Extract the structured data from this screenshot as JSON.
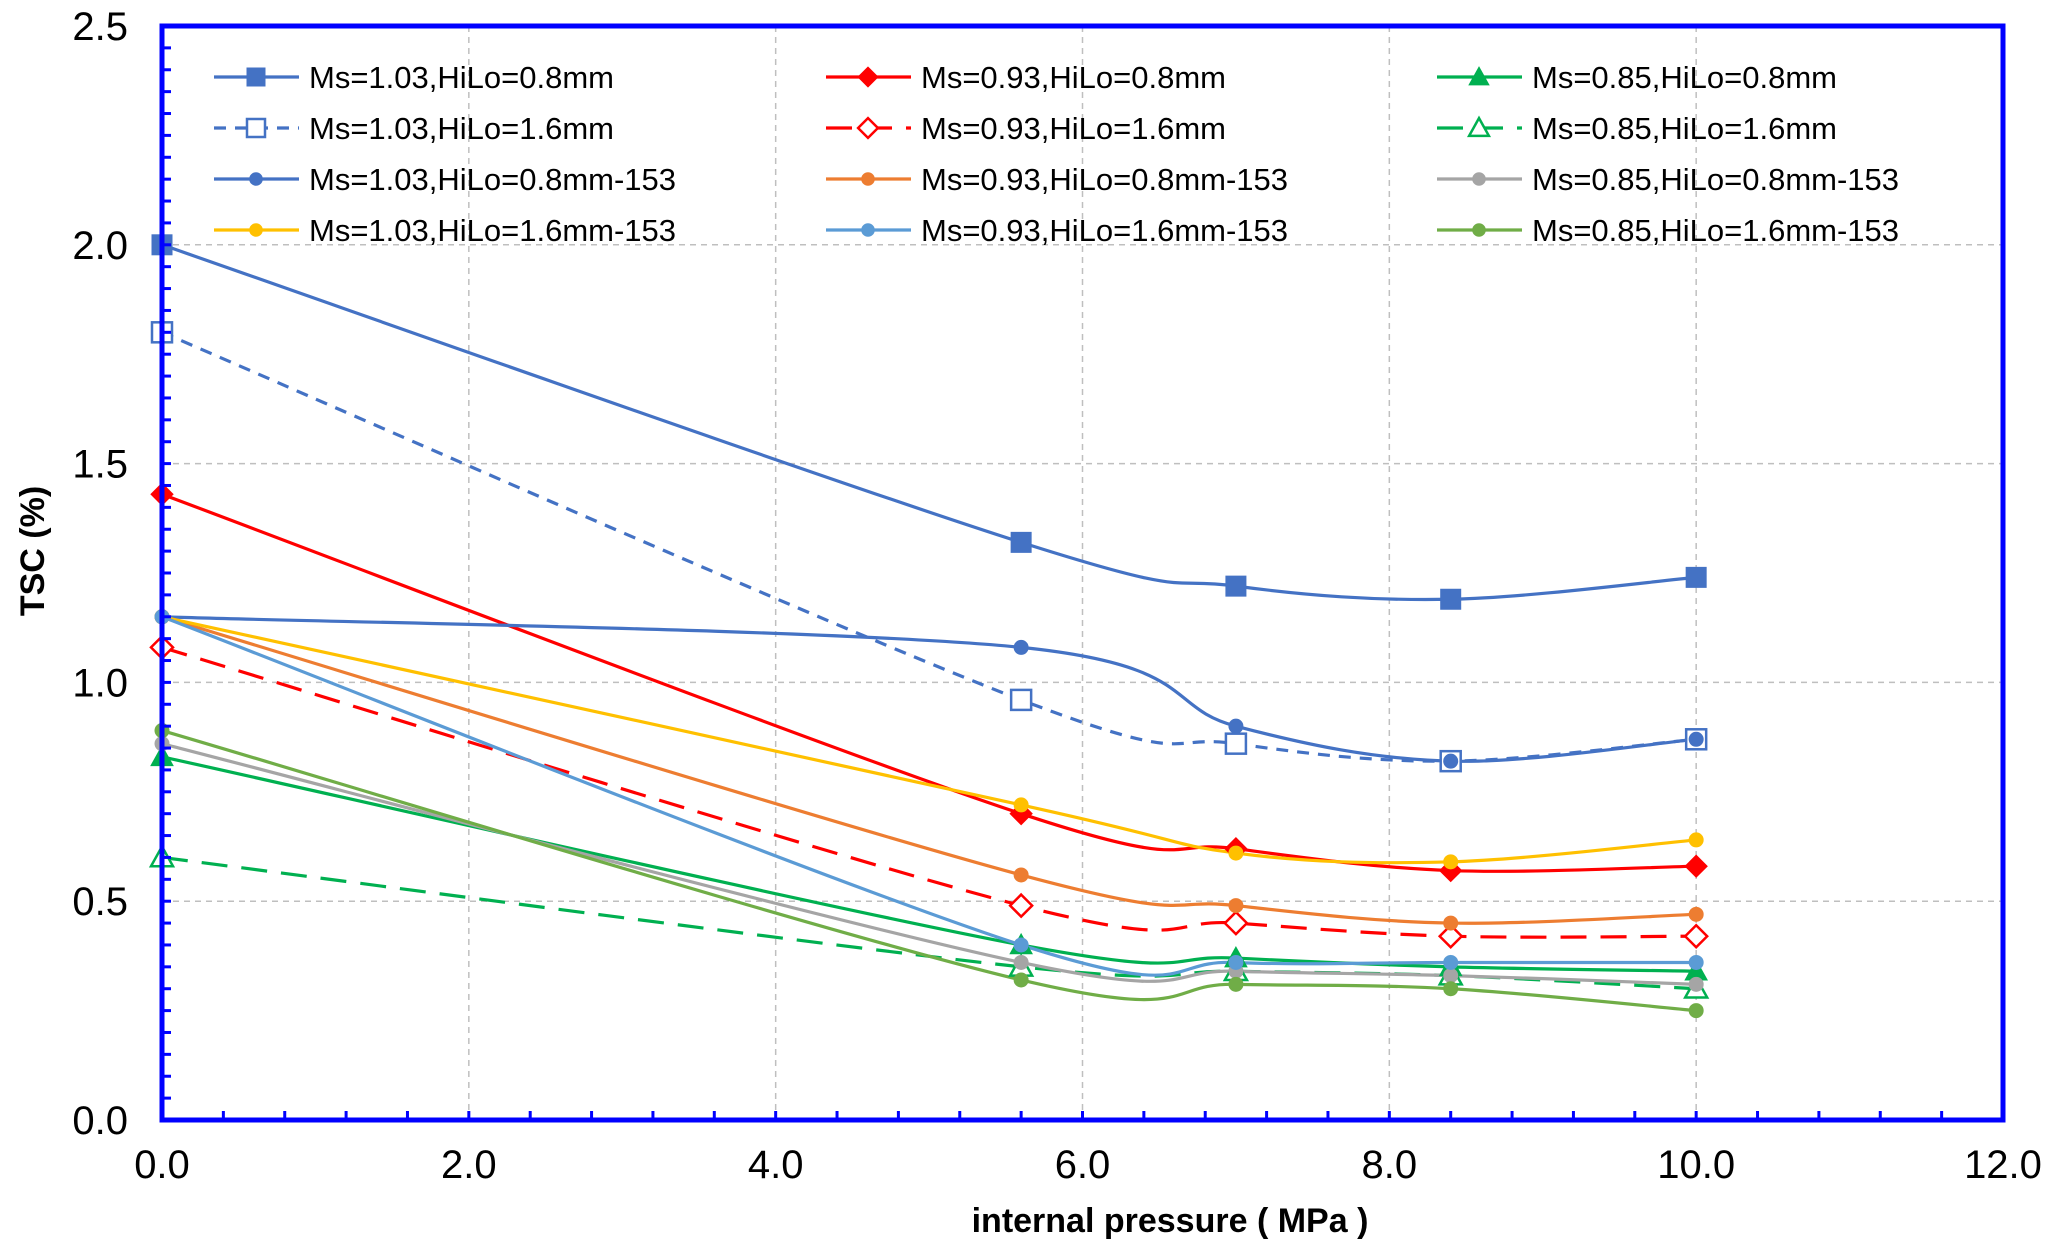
{
  "chart_data": {
    "type": "line",
    "title": "",
    "xlabel": "internal pressure ( MPa )",
    "ylabel": "TSC (%)",
    "xlim": [
      0,
      12
    ],
    "ylim": [
      0,
      2.5
    ],
    "x_ticks": [
      "0.0",
      "2.0",
      "4.0",
      "6.0",
      "8.0",
      "10.0",
      "12.0"
    ],
    "y_ticks": [
      "0.0",
      "0.5",
      "1.0",
      "1.5",
      "2.0",
      "2.5"
    ],
    "grid": true,
    "legend_position": "top",
    "colors": {
      "frame": "#0000ff",
      "grid": "#bfbfbf",
      "blue": "#4472c4",
      "red": "#ff0000",
      "green": "#00b050",
      "orange": "#ed7d31",
      "gray": "#a5a5a5",
      "yellow": "#ffc000",
      "light_blue": "#5b9bd5",
      "olive_green": "#70ad47"
    },
    "series": [
      {
        "name": "Ms=1.03,HiLo=0.8mm",
        "color": "#4472c4",
        "dash": "solid",
        "marker": "square",
        "filled": true,
        "smooth": true,
        "x": [
          0,
          5.6,
          7.0,
          8.4,
          10.0
        ],
        "y": [
          2.0,
          1.32,
          1.22,
          1.19,
          1.24
        ]
      },
      {
        "name": "Ms=0.93,HiLo=0.8mm",
        "color": "#ff0000",
        "dash": "solid",
        "marker": "diamond",
        "filled": true,
        "smooth": true,
        "x": [
          0,
          5.6,
          7.0,
          8.4,
          10.0
        ],
        "y": [
          1.43,
          0.7,
          0.62,
          0.57,
          0.58
        ]
      },
      {
        "name": "Ms=0.85,HiLo=0.8mm",
        "color": "#00b050",
        "dash": "solid",
        "marker": "triangle",
        "filled": true,
        "smooth": true,
        "x": [
          0,
          5.6,
          7.0,
          8.4,
          10.0
        ],
        "y": [
          0.83,
          0.4,
          0.37,
          0.35,
          0.34
        ]
      },
      {
        "name": "Ms=1.03,HiLo=1.6mm",
        "color": "#4472c4",
        "dash": "short",
        "marker": "square",
        "filled": false,
        "smooth": true,
        "x": [
          0,
          5.6,
          7.0,
          8.4,
          10.0
        ],
        "y": [
          1.8,
          0.96,
          0.86,
          0.82,
          0.87
        ]
      },
      {
        "name": "Ms=0.93,HiLo=1.6mm",
        "color": "#ff0000",
        "dash": "long",
        "marker": "diamond",
        "filled": false,
        "smooth": true,
        "x": [
          0,
          5.6,
          7.0,
          8.4,
          10.0
        ],
        "y": [
          1.08,
          0.49,
          0.45,
          0.42,
          0.42
        ]
      },
      {
        "name": "Ms=0.85,HiLo=1.6mm",
        "color": "#00b050",
        "dash": "long",
        "marker": "triangle",
        "filled": false,
        "smooth": true,
        "x": [
          0,
          5.6,
          7.0,
          8.4,
          10.0
        ],
        "y": [
          0.6,
          0.35,
          0.34,
          0.33,
          0.3
        ]
      },
      {
        "name": "Ms=1.03,HiLo=0.8mm-153",
        "color": "#4472c4",
        "dash": "solid",
        "marker": "circle",
        "filled": true,
        "smooth": true,
        "x": [
          0,
          5.6,
          7.0,
          8.4,
          10.0
        ],
        "y": [
          1.15,
          1.08,
          0.9,
          0.82,
          0.87
        ]
      },
      {
        "name": "Ms=0.93,HiLo=0.8mm-153",
        "color": "#ed7d31",
        "dash": "solid",
        "marker": "circle",
        "filled": true,
        "smooth": true,
        "x": [
          0,
          5.6,
          7.0,
          8.4,
          10.0
        ],
        "y": [
          1.15,
          0.56,
          0.49,
          0.45,
          0.47
        ]
      },
      {
        "name": "Ms=0.85,HiLo=0.8mm-153",
        "color": "#a5a5a5",
        "dash": "solid",
        "marker": "circle",
        "filled": true,
        "smooth": true,
        "x": [
          0,
          5.6,
          7.0,
          8.4,
          10.0
        ],
        "y": [
          0.86,
          0.36,
          0.34,
          0.33,
          0.31
        ]
      },
      {
        "name": "Ms=1.03,HiLo=1.6mm-153",
        "color": "#ffc000",
        "dash": "solid",
        "marker": "circle",
        "filled": true,
        "smooth": true,
        "x": [
          0,
          5.6,
          7.0,
          8.4,
          10.0
        ],
        "y": [
          1.15,
          0.72,
          0.61,
          0.59,
          0.64
        ]
      },
      {
        "name": "Ms=0.93,HiLo=1.6mm-153",
        "color": "#5b9bd5",
        "dash": "solid",
        "marker": "circle",
        "filled": true,
        "smooth": true,
        "x": [
          0,
          5.6,
          7.0,
          8.4,
          10.0
        ],
        "y": [
          1.15,
          0.4,
          0.36,
          0.36,
          0.36
        ]
      },
      {
        "name": "Ms=0.85,HiLo=1.6mm-153",
        "color": "#70ad47",
        "dash": "solid",
        "marker": "circle",
        "filled": true,
        "smooth": true,
        "x": [
          0,
          5.6,
          7.0,
          8.4,
          10.0
        ],
        "y": [
          0.89,
          0.32,
          0.31,
          0.3,
          0.25
        ]
      }
    ]
  }
}
